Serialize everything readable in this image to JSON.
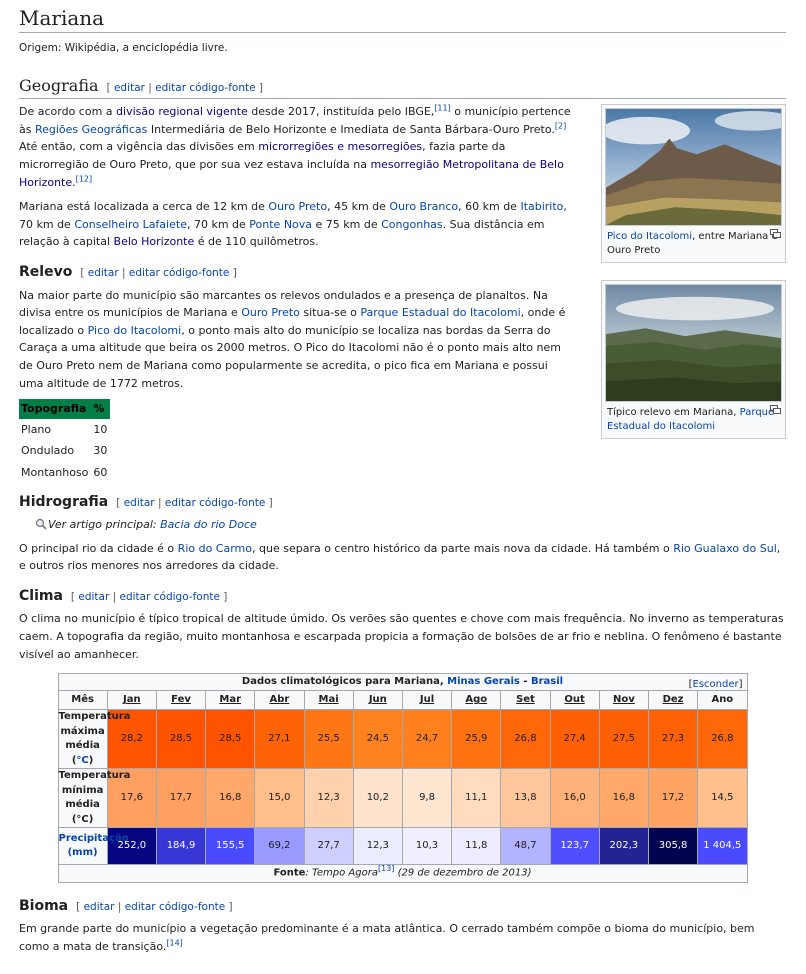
{
  "article": {
    "title": "Mariana",
    "subtitle": "Origem: Wikipédia, a enciclopédia livre.",
    "edit": "editar",
    "sep": "|",
    "edit_source": "editar código-fonte"
  },
  "geografia": {
    "heading": "Geografia",
    "p1": {
      "t1": "De acordo com a ",
      "l1": "divisão regional vigente",
      "t2": " desde 2017, instituída pelo IBGE,",
      "r1": "[11]",
      "t3": " o município pertence às ",
      "l2": "Regiões Geográficas",
      "t4": " Intermediária de Belo Horizonte e Imediata de Santa Bárbara-Ouro Preto.",
      "r2": "[2]",
      "t5": " Até então, com a vigência das divisões em ",
      "l3": "microrregiões e mesorregiões",
      "t6": ", fazia parte da microrregião de Ouro Preto, que por sua vez estava incluída na ",
      "l4": "mesorregião Metropolitana de Belo Horizonte",
      "t7": ".",
      "r3": "[12]"
    },
    "p2": {
      "t1": "Mariana está localizada a cerca de 12 km de ",
      "l1": "Ouro Preto",
      "t2": ", 45 km de ",
      "l2": "Ouro Branco",
      "t3": ", 60 km de ",
      "l3": "Itabirito",
      "t4": ", 70 km de ",
      "l4": "Conselheiro Lafaiete",
      "t5": ", 70 km de ",
      "l5": "Ponte Nova",
      "t6": " e 75 km de ",
      "l6": "Congonhas",
      "t7": ". Sua distância em relação à capital ",
      "l7": "Belo Horizonte",
      "t8": " é de 110 quilômetros."
    }
  },
  "thumbs": [
    {
      "link": "Pico do Itacolomi",
      "text": ", entre Mariana e Ouro Preto"
    },
    {
      "text": "Típico relevo em Mariana, ",
      "link": "Parque Estadual do Itacolomi"
    }
  ],
  "relevo": {
    "heading": "Relevo",
    "p": {
      "t1": "Na maior parte do município são marcantes os relevos ondulados e a presença de planaltos. Na divisa entre os municípios de Mariana e ",
      "l1": "Ouro Preto",
      "t2": " situa-se o ",
      "l2": "Parque Estadual do Itacolomi",
      "t3": ", onde é localizado o ",
      "l3": "Pico do Itacolomi",
      "t4": ", o ponto mais alto do município se localiza nas bordas da Serra do Caraça a uma altitude que beira os 2000 metros. O Pico do Itacolomi não é o ponto mais alto nem de Ouro Preto nem de Mariana como popularmente se acredita, o pico fica em Mariana e possui uma altitude de 1772 metros."
    },
    "table": {
      "headers": [
        "Topografia",
        "%"
      ],
      "rows": [
        [
          "Plano",
          "10"
        ],
        [
          "Ondulado",
          "30"
        ],
        [
          "Montanhoso",
          "60"
        ]
      ]
    }
  },
  "hidrografia": {
    "heading": "Hidrografia",
    "hatnote_text": "Ver artigo principal: ",
    "hatnote_link": "Bacia do rio Doce",
    "p": {
      "t1": "O principal rio da cidade é o ",
      "l1": "Rio do Carmo",
      "t2": ", que separa o centro histórico da parte mais nova da cidade. Há também o ",
      "l2": "Rio Gualaxo do Sul",
      "t3": ", e outros rios menores nos arredores da cidade."
    }
  },
  "clima": {
    "heading": "Clima",
    "p": "O clima no município é típico tropical de altitude úmido. Os verões são quentes e chove com mais frequência. No inverno as temperaturas caem. A topografia da região, muito montanhosa e escarpada propicia a formação de bolsões de ar frio e neblina. O fenômeno é bastante visível ao amanhecer.",
    "table": {
      "title_text": "Dados climatológicos para Mariana, ",
      "title_link1": "Minas Gerais",
      "title_sep": " - ",
      "title_link2": "Brasil",
      "hide_open": "[",
      "hide": "Esconder",
      "hide_close": "]",
      "month_header": "Mês",
      "months": [
        "Jan",
        "Fev",
        "Mar",
        "Abr",
        "Mai",
        "Jun",
        "Jul",
        "Ago",
        "Set",
        "Out",
        "Nov",
        "Dez",
        "Ano"
      ],
      "rows": [
        {
          "label_text": "Temperatura máxima média (",
          "label_link": "°C",
          "label_close": ")",
          "values": [
            "28,2",
            "28,5",
            "28,5",
            "27,1",
            "25,5",
            "24,5",
            "24,7",
            "25,9",
            "26,8",
            "27,4",
            "27,5",
            "27,3",
            "26,8"
          ]
        },
        {
          "label": "Temperatura mínima média (°C)",
          "values": [
            "17,6",
            "17,7",
            "16,8",
            "15,0",
            "12,3",
            "10,2",
            "9,8",
            "11,1",
            "13,8",
            "16,0",
            "16,8",
            "17,2",
            "14,5"
          ]
        },
        {
          "label": "Precipitação (mm)",
          "values": [
            "252,0",
            "184,9",
            "155,5",
            "69,2",
            "27,7",
            "12,3",
            "10,3",
            "11,8",
            "48,7",
            "123,7",
            "202,3",
            "305,8",
            "1 404,5"
          ]
        }
      ],
      "colors": {
        "max": [
          "#ff5400",
          "#ff5300",
          "#ff5300",
          "#ff6307",
          "#ff7615",
          "#ff8220",
          "#ff801d",
          "#ff7210",
          "#ff6808",
          "#ff6005",
          "#ff6005",
          "#ff6105",
          "#ff6808"
        ],
        "min": [
          "#ffa060",
          "#ffa060",
          "#ffa86a",
          "#ffbf8a",
          "#ffd2ad",
          "#ffe3cc",
          "#ffe6d1",
          "#ffdcc0",
          "#ffc79b",
          "#ffb27a",
          "#ffa86a",
          "#ffa462",
          "#ffc08e"
        ],
        "prec": [
          "#060682",
          "#3636d7",
          "#4a4aff",
          "#9a9aff",
          "#cfcfff",
          "#ececff",
          "#efefff",
          "#ededff",
          "#b3b3ff",
          "#4f4fff",
          "#232394",
          "#030350",
          "#4a4aff"
        ]
      },
      "foot_bold": "Fonte",
      "foot_text": ": Tempo Agora",
      "foot_ref": "[13]",
      "foot_date": " (29 de dezembro de 2013)"
    }
  },
  "bioma": {
    "heading": "Bioma",
    "p": "Em grande parte do município a vegetação predominante é a mata atlântica. O cerrado também compõe o bioma do município, bem como a mata de transição.",
    "ref": "[14]"
  }
}
